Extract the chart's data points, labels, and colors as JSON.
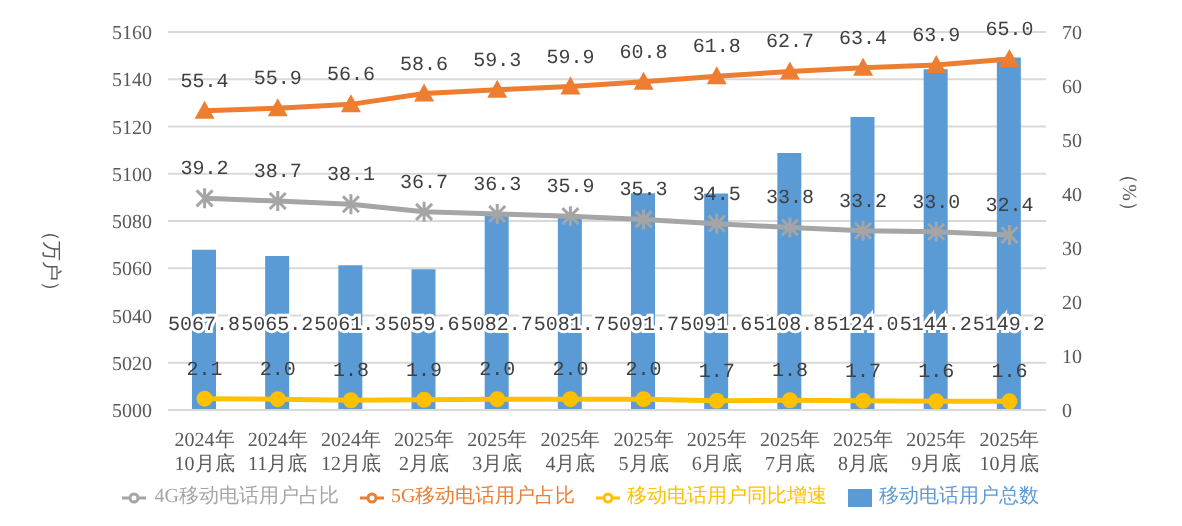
{
  "chart_data": {
    "type": "bar",
    "ylabel": "（万户）",
    "y2label": "（%）",
    "categories": [
      "2024年\n10月底",
      "2024年\n11月底",
      "2024年\n12月底",
      "2025年\n2月底",
      "2025年\n3月底",
      "2025年\n4月底",
      "2025年\n5月底",
      "2025年\n6月底",
      "2025年\n7月底",
      "2025年\n8月底",
      "2025年\n9月底",
      "2025年\n10月底"
    ],
    "series": [
      {
        "name": "移动电话用户总数",
        "color": "#5b9bd5",
        "values": [
          5067.8,
          5065.2,
          5061.3,
          5059.6,
          5082.7,
          5081.7,
          5091.7,
          5091.6,
          5108.8,
          5124.0,
          5144.2,
          5149.2
        ],
        "value_labels": [
          "5067.8",
          "5065.2",
          "5061.3",
          "5059.6",
          "5082.7",
          "5081.7",
          "5091.7",
          "5091.6",
          "5108.8",
          "5124.0",
          "5144.2",
          "5149.2"
        ]
      },
      {
        "name": "5G移动电话用户占比",
        "type": "line",
        "axis": "y2",
        "marker": "triangle",
        "color": "#ed7d31",
        "values": [
          55.4,
          55.9,
          56.6,
          58.6,
          59.3,
          59.9,
          60.8,
          61.8,
          62.7,
          63.4,
          63.9,
          65.0
        ],
        "value_labels": [
          "55.4",
          "55.9",
          "56.6",
          "58.6",
          "59.3",
          "59.9",
          "60.8",
          "61.8",
          "62.7",
          "63.4",
          "63.9",
          "65.0"
        ]
      },
      {
        "name": "4G移动电话用户占比",
        "type": "line",
        "axis": "y2",
        "marker": "cross",
        "color": "#a5a5a5",
        "values": [
          39.2,
          38.7,
          38.1,
          36.7,
          36.3,
          35.9,
          35.3,
          34.5,
          33.8,
          33.2,
          33.0,
          32.4
        ],
        "value_labels": [
          "39.2",
          "38.7",
          "38.1",
          "36.7",
          "36.3",
          "35.9",
          "35.3",
          "34.5",
          "33.8",
          "33.2",
          "33.0",
          "32.4"
        ]
      },
      {
        "name": "移动电话用户同比增速",
        "type": "line",
        "axis": "y2",
        "marker": "circle",
        "color": "#ffc000",
        "values": [
          2.1,
          2.0,
          1.8,
          1.9,
          2.0,
          2.0,
          2.0,
          1.7,
          1.8,
          1.7,
          1.6,
          1.6
        ],
        "value_labels": [
          "2.1",
          "2.0",
          "1.8",
          "1.9",
          "2.0",
          "2.0",
          "2.0",
          "1.7",
          "1.8",
          "1.7",
          "1.6",
          "1.6"
        ]
      }
    ],
    "ylim": [
      5000,
      5160
    ],
    "yticks": [
      5000,
      5020,
      5040,
      5060,
      5080,
      5100,
      5120,
      5140,
      5160
    ],
    "y2lim": [
      0,
      70
    ],
    "y2ticks": [
      0,
      10,
      20,
      30,
      40,
      50,
      60,
      70
    ],
    "grid": "y",
    "legend": "bottom"
  }
}
